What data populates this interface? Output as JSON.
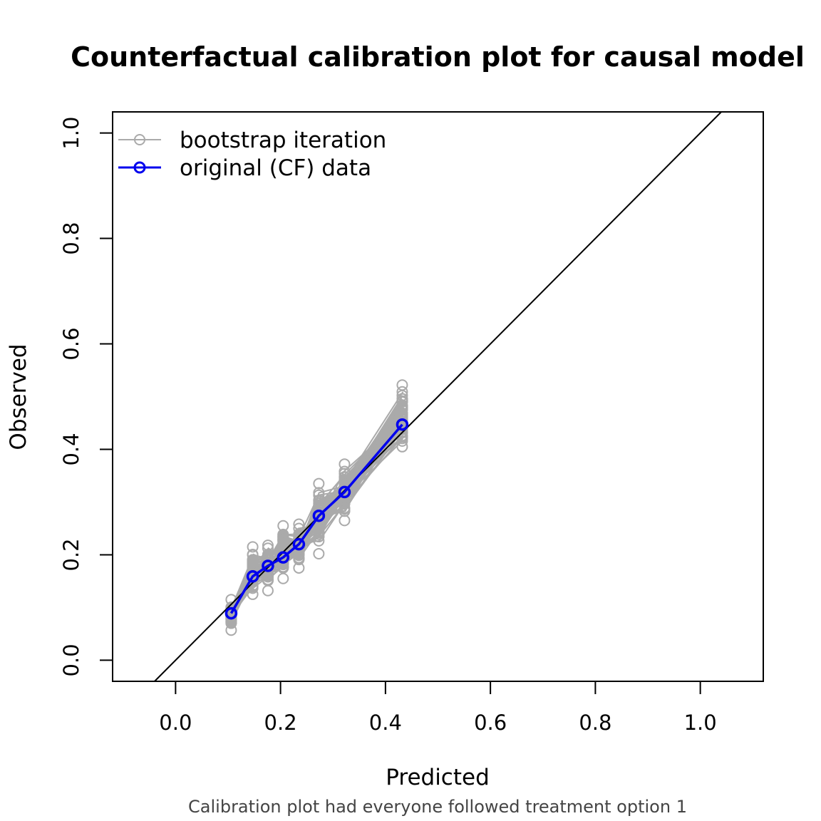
{
  "chart_data": {
    "type": "line",
    "title": "Counterfactual calibration plot for causal model",
    "xlabel": "Predicted",
    "ylabel": "Observed",
    "caption": "Calibration plot had everyone followed treatment option 1",
    "xlim": [
      -0.12,
      1.12
    ],
    "ylim": [
      -0.04,
      1.04
    ],
    "xticks": [
      0.0,
      0.2,
      0.4,
      0.6,
      0.8,
      1.0
    ],
    "yticks": [
      0.0,
      0.2,
      0.4,
      0.6,
      0.8,
      1.0
    ],
    "tick_labels": [
      "0.0",
      "0.2",
      "0.4",
      "0.6",
      "0.8",
      "1.0"
    ],
    "grid": false,
    "legend_position": "top-left",
    "reference_line": {
      "slope": 1,
      "intercept": 0
    },
    "series": [
      {
        "name": "bootstrap iteration",
        "color": "#aaaaaa",
        "x": [
          0.106,
          0.147,
          0.176,
          0.205,
          0.235,
          0.273,
          0.322,
          0.432
        ],
        "y": [
          0.09,
          0.16,
          0.18,
          0.195,
          0.22,
          0.275,
          0.32,
          0.45
        ],
        "y_min": [
          0.057,
          0.125,
          0.132,
          0.155,
          0.175,
          0.202,
          0.265,
          0.405
        ],
        "y_max": [
          0.115,
          0.215,
          0.218,
          0.255,
          0.258,
          0.335,
          0.372,
          0.522
        ]
      },
      {
        "name": "original (CF) data",
        "color": "#0000ee",
        "x": [
          0.106,
          0.147,
          0.176,
          0.205,
          0.235,
          0.273,
          0.322,
          0.432
        ],
        "y": [
          0.089,
          0.159,
          0.179,
          0.195,
          0.22,
          0.274,
          0.319,
          0.447
        ]
      }
    ]
  }
}
